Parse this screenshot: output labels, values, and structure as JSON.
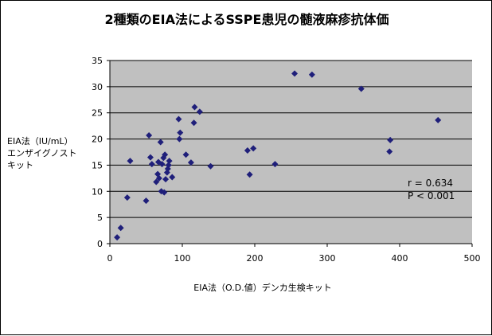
{
  "chart_data": {
    "type": "scatter",
    "title": "2種類のEIA法によるSSPE患児の髄液麻疹抗体価",
    "xlabel": "EIA法（O.D.値）デンカ生検キット",
    "ylabel_lines": [
      "EIA法（IU/mL）",
      "エンザイグノスト",
      "キット"
    ],
    "xlim": [
      0,
      500
    ],
    "ylim": [
      0,
      35
    ],
    "x_ticks": [
      0,
      100,
      200,
      300,
      400,
      500
    ],
    "y_ticks": [
      0,
      5,
      10,
      15,
      20,
      25,
      30,
      35
    ],
    "grid": "horizontal",
    "plot_background": "#c0c0c0",
    "marker_color": "#1f1f7a",
    "annotations": [
      "r = 0.634",
      "P < 0.001"
    ],
    "points": [
      {
        "x": 10,
        "y": 1.2
      },
      {
        "x": 15,
        "y": 3.0
      },
      {
        "x": 24,
        "y": 8.8
      },
      {
        "x": 28,
        "y": 15.8
      },
      {
        "x": 50,
        "y": 8.2
      },
      {
        "x": 54,
        "y": 20.7
      },
      {
        "x": 56,
        "y": 16.5
      },
      {
        "x": 58,
        "y": 15.2
      },
      {
        "x": 64,
        "y": 11.8
      },
      {
        "x": 66,
        "y": 13.3
      },
      {
        "x": 67,
        "y": 15.6
      },
      {
        "x": 68,
        "y": 12.5
      },
      {
        "x": 70,
        "y": 19.4
      },
      {
        "x": 71,
        "y": 10.0
      },
      {
        "x": 72,
        "y": 15.2
      },
      {
        "x": 74,
        "y": 16.4
      },
      {
        "x": 75,
        "y": 9.8
      },
      {
        "x": 76,
        "y": 17.0
      },
      {
        "x": 77,
        "y": 12.3
      },
      {
        "x": 79,
        "y": 13.6
      },
      {
        "x": 80,
        "y": 14.3
      },
      {
        "x": 81,
        "y": 15.0
      },
      {
        "x": 82,
        "y": 15.8
      },
      {
        "x": 86,
        "y": 12.7
      },
      {
        "x": 95,
        "y": 23.8
      },
      {
        "x": 96,
        "y": 20.0
      },
      {
        "x": 97,
        "y": 21.2
      },
      {
        "x": 105,
        "y": 17.0
      },
      {
        "x": 112,
        "y": 15.5
      },
      {
        "x": 116,
        "y": 23.1
      },
      {
        "x": 117,
        "y": 26.1
      },
      {
        "x": 124,
        "y": 25.2
      },
      {
        "x": 139,
        "y": 14.8
      },
      {
        "x": 190,
        "y": 17.8
      },
      {
        "x": 193,
        "y": 13.2
      },
      {
        "x": 198,
        "y": 18.2
      },
      {
        "x": 228,
        "y": 15.2
      },
      {
        "x": 255,
        "y": 32.5
      },
      {
        "x": 279,
        "y": 32.3
      },
      {
        "x": 347,
        "y": 29.6
      },
      {
        "x": 386,
        "y": 17.6
      },
      {
        "x": 387,
        "y": 19.8
      },
      {
        "x": 453,
        "y": 23.6
      }
    ]
  }
}
